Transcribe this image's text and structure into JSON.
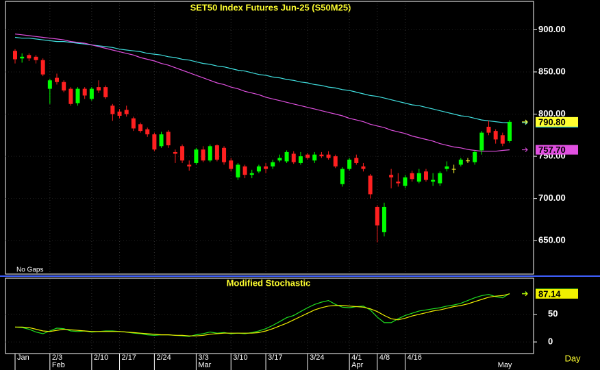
{
  "chart_data": [
    {
      "type": "candlestick",
      "title": "SET50 Index Futures Jun-25 (S50M25)",
      "annotation": "No Gaps",
      "categories": [
        "Jan",
        null,
        null,
        null,
        null,
        "2/3",
        null,
        null,
        null,
        null,
        null,
        "2/10",
        null,
        null,
        null,
        "2/17",
        null,
        null,
        null,
        null,
        "2/24",
        null,
        null,
        null,
        null,
        null,
        "3/3",
        null,
        null,
        null,
        null,
        "3/10",
        null,
        null,
        null,
        null,
        "3/17",
        null,
        null,
        null,
        null,
        null,
        "3/24",
        null,
        null,
        null,
        null,
        null,
        "4/1",
        null,
        null,
        null,
        "4/8",
        null,
        null,
        null,
        "4/16",
        null,
        null,
        null,
        null,
        null,
        null,
        null,
        null,
        null,
        null,
        null,
        null,
        null,
        null,
        null
      ],
      "months": [
        null,
        null,
        null,
        null,
        null,
        "Feb",
        null,
        null,
        null,
        null,
        null,
        null,
        null,
        null,
        null,
        null,
        null,
        null,
        null,
        null,
        null,
        null,
        null,
        null,
        null,
        null,
        "Mar",
        null,
        null,
        null,
        null,
        null,
        null,
        null,
        null,
        null,
        null,
        null,
        null,
        null,
        null,
        null,
        null,
        null,
        null,
        null,
        null,
        null,
        "Apr",
        null,
        null,
        null,
        null,
        null,
        null,
        null,
        null,
        null,
        null,
        null,
        null,
        null,
        null,
        null,
        null,
        null,
        null,
        null,
        null,
        "May",
        null,
        null
      ],
      "open": [
        875,
        866,
        870,
        868,
        864,
        830,
        843,
        838,
        830,
        813,
        830,
        818,
        832,
        832,
        810,
        803,
        805,
        795,
        788,
        782,
        776,
        762,
        779,
        755,
        762,
        740,
        742,
        758,
        745,
        763,
        760,
        745,
        725,
        738,
        728,
        732,
        738,
        738,
        745,
        744,
        753,
        742,
        752,
        745,
        752,
        752,
        750,
        717,
        735,
        748,
        738,
        727,
        690,
        660,
        728,
        720,
        715,
        730,
        720,
        732,
        720,
        718,
        735,
        735,
        740,
        745,
        743,
        757,
        785,
        780,
        775,
        768
      ],
      "high": [
        877,
        872,
        872,
        870,
        866,
        842,
        848,
        840,
        832,
        832,
        832,
        832,
        840,
        834,
        812,
        806,
        810,
        797,
        790,
        784,
        778,
        779,
        781,
        758,
        764,
        745,
        760,
        762,
        764,
        764,
        762,
        748,
        742,
        740,
        734,
        740,
        742,
        746,
        752,
        757,
        756,
        755,
        754,
        755,
        755,
        756,
        752,
        737,
        748,
        752,
        742,
        729,
        692,
        695,
        735,
        730,
        728,
        733,
        735,
        735,
        730,
        732,
        744,
        740,
        748,
        748,
        757,
        780,
        792,
        782,
        778,
        793
      ],
      "low": [
        860,
        861,
        863,
        860,
        845,
        812,
        835,
        826,
        810,
        810,
        818,
        816,
        825,
        818,
        792,
        795,
        797,
        780,
        778,
        773,
        756,
        760,
        760,
        742,
        742,
        733,
        740,
        743,
        743,
        744,
        740,
        732,
        722,
        724,
        724,
        730,
        730,
        735,
        743,
        742,
        741,
        740,
        746,
        742,
        748,
        746,
        736,
        714,
        733,
        740,
        732,
        700,
        648,
        655,
        712,
        714,
        712,
        720,
        718,
        720,
        715,
        715,
        732,
        730,
        738,
        742,
        740,
        752,
        775,
        765,
        762,
        766
      ],
      "close": [
        865,
        868,
        866,
        864,
        847,
        840,
        838,
        828,
        812,
        830,
        822,
        830,
        828,
        820,
        800,
        798,
        800,
        783,
        780,
        776,
        758,
        776,
        763,
        753,
        745,
        738,
        758,
        745,
        762,
        746,
        743,
        735,
        740,
        728,
        730,
        738,
        735,
        743,
        748,
        755,
        743,
        750,
        748,
        752,
        750,
        748,
        738,
        735,
        746,
        742,
        735,
        705,
        668,
        690,
        725,
        718,
        725,
        723,
        730,
        722,
        722,
        730,
        738,
        735,
        746,
        745,
        755,
        778,
        778,
        770,
        765,
        790.8
      ],
      "close_last_label": "790.80",
      "close_last_color": "#ffff30",
      "up_color": "#00ff00",
      "down_color": "#ff2020",
      "doji_color": "#ffff30",
      "series": [
        {
          "color": "#40e0e0",
          "values": [
            891,
            890,
            890,
            889,
            888,
            887,
            886,
            886,
            885,
            884,
            883,
            882,
            881,
            880,
            879,
            877,
            876,
            875,
            874,
            872,
            871,
            870,
            868,
            867,
            865,
            864,
            862,
            860,
            859,
            857,
            856,
            854,
            852,
            851,
            849,
            847,
            846,
            844,
            843,
            841,
            840,
            838,
            837,
            835,
            834,
            832,
            831,
            829,
            828,
            826,
            824,
            822,
            821,
            819,
            817,
            815,
            813,
            811,
            810,
            808,
            806,
            804,
            802,
            800,
            798,
            797,
            795,
            793,
            792,
            791,
            790,
            789.86
          ]
        },
        {
          "color": "#e050e0",
          "values": [
            895,
            894,
            893,
            892,
            891,
            890,
            889,
            888,
            886,
            885,
            884,
            882,
            880,
            878,
            876,
            874,
            872,
            870,
            867,
            865,
            863,
            860,
            858,
            855,
            852,
            849,
            846,
            843,
            840,
            837,
            835,
            832,
            830,
            827,
            825,
            823,
            820,
            818,
            816,
            814,
            812,
            810,
            808,
            806,
            804,
            802,
            800,
            798,
            795,
            793,
            791,
            788,
            786,
            784,
            781,
            779,
            777,
            774,
            772,
            770,
            768,
            765,
            763,
            761,
            760,
            758,
            757,
            756,
            756,
            756,
            757,
            757.7
          ],
          "last_label": "757.70"
        }
      ],
      "ylim": [
        612,
        932
      ],
      "yticks": [
        {
          "value": 650,
          "label": "650.00"
        },
        {
          "value": 700,
          "label": "700.00"
        },
        {
          "value": 750,
          "label": "750.00"
        },
        {
          "value": 800,
          "label": "800.00"
        },
        {
          "value": 850,
          "label": "850.00"
        },
        {
          "value": 900,
          "label": "900.00"
        }
      ],
      "grid": true
    },
    {
      "type": "line",
      "title": "Modified Stochastic",
      "x_axis_label": "Day",
      "series": [
        {
          "color": "#20e020",
          "values": [
            27,
            26,
            23,
            18,
            15,
            20,
            25,
            24,
            20,
            19,
            20,
            18,
            19,
            20,
            20,
            19,
            18,
            16,
            15,
            13,
            12,
            13,
            13,
            12,
            11,
            10,
            13,
            15,
            18,
            16,
            17,
            15,
            16,
            15,
            17,
            20,
            24,
            30,
            37,
            44,
            48,
            55,
            62,
            68,
            72,
            75,
            68,
            63,
            62,
            64,
            65,
            58,
            45,
            35,
            35,
            42,
            48,
            52,
            56,
            58,
            60,
            62,
            65,
            67,
            70,
            75,
            80,
            84,
            86,
            82,
            80,
            87.91
          ]
        },
        {
          "color": "#f0f000",
          "values": [
            27,
            27,
            26,
            23,
            20,
            19,
            21,
            23,
            22,
            21,
            20,
            19,
            19,
            19,
            19,
            19,
            18,
            17,
            16,
            15,
            14,
            13,
            13,
            12,
            12,
            11,
            11,
            12,
            14,
            15,
            16,
            16,
            16,
            16,
            16,
            17,
            20,
            24,
            29,
            34,
            40,
            46,
            52,
            58,
            62,
            65,
            66,
            66,
            65,
            64,
            63,
            60,
            55,
            48,
            42,
            40,
            43,
            47,
            50,
            53,
            56,
            58,
            61,
            64,
            66,
            69,
            73,
            77,
            81,
            83,
            84,
            87.14
          ]
        }
      ],
      "ylim": [
        -21,
        113
      ],
      "yticks": [
        0,
        50
      ],
      "grid": true
    }
  ]
}
